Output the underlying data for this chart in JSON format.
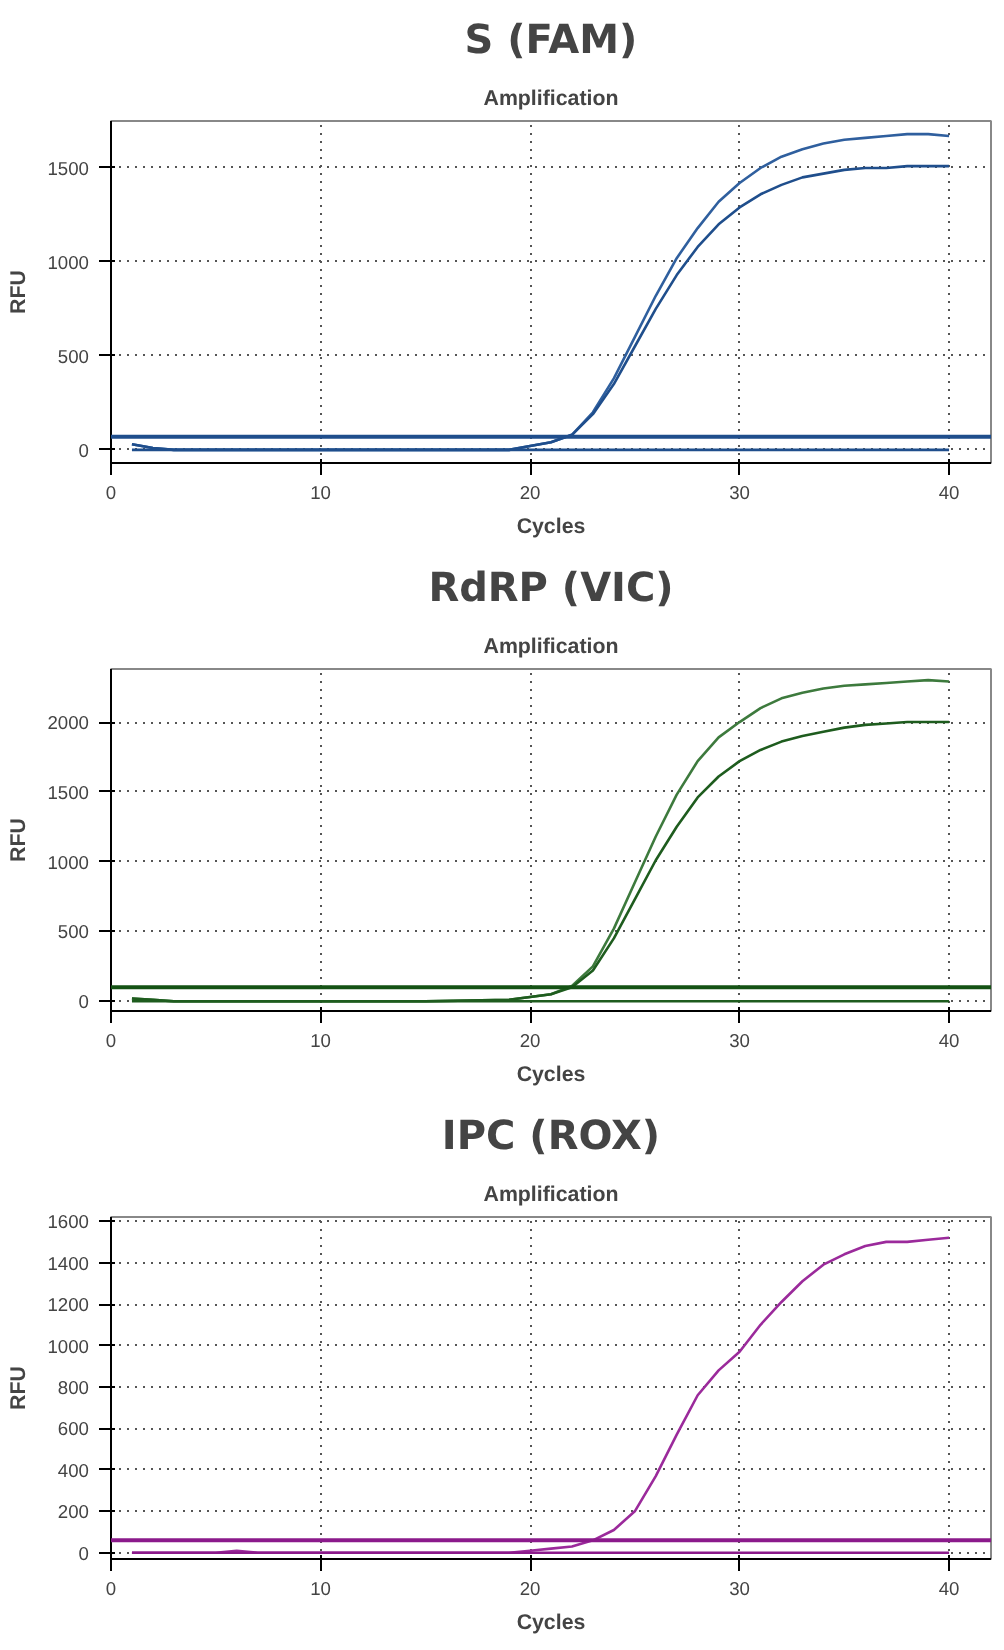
{
  "chart_data": [
    {
      "type": "line",
      "title": "S (FAM)",
      "subtitle": "Amplification",
      "xlabel": "Cycles",
      "ylabel": "RFU",
      "xlim": [
        0,
        42
      ],
      "ylim": [
        -70,
        1750
      ],
      "xticks": [
        0,
        10,
        20,
        30,
        40
      ],
      "yticks": [
        0,
        500,
        1000,
        1500
      ],
      "grid": true,
      "line_style": "solid",
      "ref_lines": [
        {
          "axis": "y",
          "value": 70,
          "color": "#1f4e8c"
        }
      ],
      "series": [
        {
          "color": "#2f5f9e",
          "x": [
            1,
            2,
            3,
            5,
            10,
            15,
            19,
            20,
            21,
            22,
            23,
            24,
            25,
            26,
            27,
            28,
            29,
            30,
            31,
            32,
            33,
            34,
            35,
            36,
            37,
            38,
            39,
            40
          ],
          "values": [
            30,
            10,
            0,
            0,
            0,
            0,
            0,
            20,
            40,
            80,
            200,
            380,
            600,
            820,
            1020,
            1180,
            1320,
            1420,
            1500,
            1560,
            1600,
            1630,
            1650,
            1660,
            1670,
            1680,
            1680,
            1670
          ]
        },
        {
          "color": "#1f4e8c",
          "x": [
            1,
            2,
            3,
            5,
            10,
            15,
            19,
            20,
            21,
            22,
            23,
            24,
            25,
            26,
            27,
            28,
            29,
            30,
            31,
            32,
            33,
            34,
            35,
            36,
            37,
            38,
            39,
            40
          ],
          "values": [
            30,
            10,
            0,
            0,
            0,
            0,
            0,
            20,
            40,
            80,
            190,
            350,
            550,
            750,
            930,
            1080,
            1200,
            1290,
            1360,
            1410,
            1450,
            1470,
            1490,
            1500,
            1500,
            1510,
            1510,
            1510
          ]
        },
        {
          "color": "#1f4e8c",
          "x": [
            1,
            10,
            20,
            30,
            40
          ],
          "values": [
            0,
            0,
            0,
            0,
            0
          ]
        }
      ]
    },
    {
      "type": "line",
      "title": "RdRP (VIC)",
      "subtitle": "Amplification",
      "xlabel": "Cycles",
      "ylabel": "RFU",
      "xlim": [
        0,
        42
      ],
      "ylim": [
        -70,
        2380
      ],
      "xticks": [
        0,
        10,
        20,
        30,
        40
      ],
      "yticks": [
        0,
        500,
        1000,
        1500,
        2000
      ],
      "grid": true,
      "line_style": "solid",
      "ref_lines": [
        {
          "axis": "y",
          "value": 100,
          "color": "#145214"
        }
      ],
      "series": [
        {
          "color": "#3d7a3d",
          "x": [
            1,
            2,
            3,
            5,
            10,
            15,
            19,
            20,
            21,
            22,
            23,
            24,
            25,
            26,
            27,
            28,
            29,
            30,
            31,
            32,
            33,
            34,
            35,
            36,
            37,
            38,
            39,
            40
          ],
          "values": [
            20,
            10,
            0,
            0,
            0,
            0,
            10,
            30,
            50,
            110,
            250,
            520,
            850,
            1180,
            1480,
            1720,
            1890,
            2000,
            2100,
            2170,
            2210,
            2240,
            2260,
            2270,
            2280,
            2290,
            2300,
            2290
          ]
        },
        {
          "color": "#1e5c1e",
          "x": [
            1,
            2,
            3,
            5,
            10,
            15,
            19,
            20,
            21,
            22,
            23,
            24,
            25,
            26,
            27,
            28,
            29,
            30,
            31,
            32,
            33,
            34,
            35,
            36,
            37,
            38,
            39,
            40
          ],
          "values": [
            20,
            10,
            0,
            0,
            0,
            0,
            10,
            30,
            50,
            100,
            220,
            450,
            730,
            1010,
            1250,
            1460,
            1610,
            1720,
            1800,
            1860,
            1900,
            1930,
            1960,
            1980,
            1990,
            2000,
            2000,
            2000
          ]
        },
        {
          "color": "#1e5c1e",
          "x": [
            1,
            10,
            20,
            30,
            40
          ],
          "values": [
            0,
            0,
            0,
            0,
            0
          ]
        }
      ]
    },
    {
      "type": "line",
      "title": "IPC (ROX)",
      "subtitle": "Amplification",
      "xlabel": "Cycles",
      "ylabel": "RFU",
      "xlim": [
        0,
        42
      ],
      "ylim": [
        -30,
        1620
      ],
      "xticks": [
        0,
        10,
        20,
        30,
        40
      ],
      "yticks": [
        0,
        200,
        400,
        600,
        800,
        1000,
        1200,
        1400,
        1600
      ],
      "grid": true,
      "line_style": "solid",
      "ref_lines": [
        {
          "axis": "y",
          "value": 60,
          "color": "#8b1a8b"
        }
      ],
      "series": [
        {
          "color": "#9b2a9b",
          "x": [
            1,
            5,
            6,
            7,
            10,
            15,
            19,
            20,
            21,
            22,
            23,
            24,
            25,
            26,
            27,
            28,
            29,
            30,
            31,
            32,
            33,
            34,
            35,
            36,
            37,
            38,
            39,
            40
          ],
          "values": [
            0,
            0,
            10,
            0,
            0,
            0,
            0,
            10,
            20,
            30,
            60,
            110,
            200,
            370,
            570,
            760,
            880,
            970,
            1100,
            1210,
            1310,
            1390,
            1440,
            1480,
            1500,
            1500,
            1510,
            1520
          ]
        },
        {
          "color": "#8b1a8b",
          "x": [
            1,
            10,
            20,
            30,
            40
          ],
          "values": [
            0,
            0,
            0,
            0,
            0
          ]
        }
      ]
    }
  ]
}
